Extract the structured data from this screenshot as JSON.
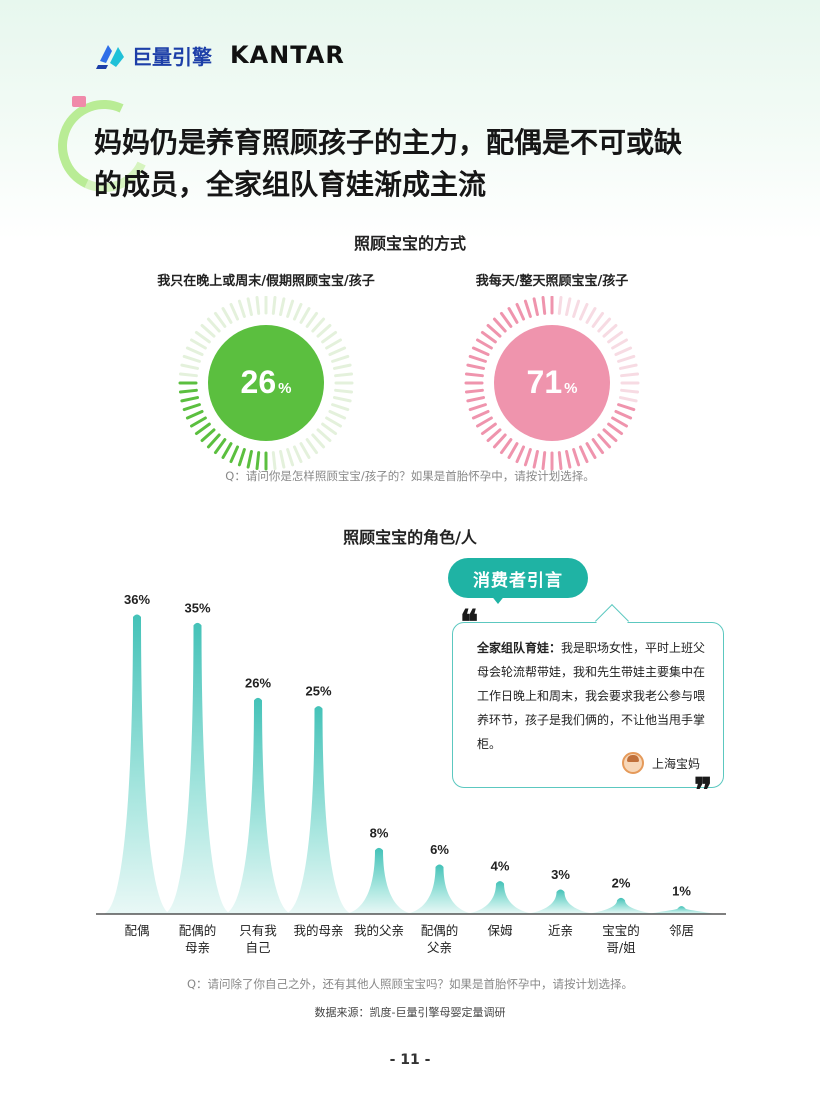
{
  "header": {
    "brand_cn": "巨量引擎",
    "brand_en": "KANTAR"
  },
  "title": {
    "line1": "妈妈仍是养育照顾孩子的主力，配偶是不可或缺",
    "line2": "的成员，全家组队育娃渐成主流"
  },
  "section1": {
    "title": "照顾宝宝的方式",
    "question": "Q：请问你是怎样照顾宝宝/孩子的？如果是首胎怀孕中，请按计划选择。"
  },
  "section2": {
    "title": "照顾宝宝的角色/人",
    "question": "Q：请问除了你自己之外，还有其他人照顾宝宝吗？如果是首胎怀孕中，请按计划选择。"
  },
  "quote": {
    "badge": "消费者引言",
    "lead": "全家组队育娃：",
    "body": "我是职场女性，平时上班父母会轮流帮带娃，我和先生带娃主要集中在工作日晚上和周末，我会要求我老公参与喂养环节，孩子是我们俩的，不让他当甩手掌柜。",
    "author": "上海宝妈",
    "open_mark": "❝",
    "close_mark": "❞"
  },
  "source": "数据来源：凯度-巨量引擎母婴定量调研",
  "page_number": "- 11 -",
  "colors": {
    "green": "#5bbf3f",
    "pink": "#ef94ad",
    "teal": "#5dcfc6",
    "teal_badge": "#1fb3a4"
  },
  "chart_data": [
    {
      "type": "pie",
      "title": "照顾宝宝的方式",
      "slices": [
        {
          "label": "我只在晚上或周末/假期照顾宝宝/孩子",
          "value": 26,
          "display": "26",
          "unit": "%",
          "color": "#5bbf3f"
        },
        {
          "label": "我每天/整天照顾宝宝/孩子",
          "value": 71,
          "display": "71",
          "unit": "%",
          "color": "#ef94ad"
        }
      ]
    },
    {
      "type": "bar",
      "title": "照顾宝宝的角色/人",
      "categories": [
        "配偶",
        "配偶的\n母亲",
        "只有我\n自己",
        "我的母亲",
        "我的父亲",
        "配偶的\n父亲",
        "保姆",
        "近亲",
        "宝宝的\n哥/姐",
        "邻居"
      ],
      "values": [
        36,
        35,
        26,
        25,
        8,
        6,
        4,
        3,
        2,
        1
      ],
      "labels": [
        "36%",
        "35%",
        "26%",
        "25%",
        "8%",
        "6%",
        "4%",
        "3%",
        "2%",
        "1%"
      ],
      "ylim": [
        0,
        36
      ]
    }
  ]
}
